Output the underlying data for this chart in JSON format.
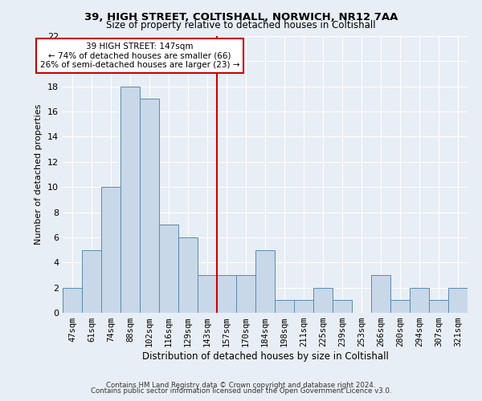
{
  "title1": "39, HIGH STREET, COLTISHALL, NORWICH, NR12 7AA",
  "title2": "Size of property relative to detached houses in Coltishall",
  "xlabel": "Distribution of detached houses by size in Coltishall",
  "ylabel": "Number of detached properties",
  "categories": [
    "47sqm",
    "61sqm",
    "74sqm",
    "88sqm",
    "102sqm",
    "116sqm",
    "129sqm",
    "143sqm",
    "157sqm",
    "170sqm",
    "184sqm",
    "198sqm",
    "211sqm",
    "225sqm",
    "239sqm",
    "253sqm",
    "266sqm",
    "280sqm",
    "294sqm",
    "307sqm",
    "321sqm"
  ],
  "values": [
    2,
    5,
    10,
    18,
    17,
    7,
    6,
    3,
    3,
    3,
    5,
    1,
    1,
    2,
    1,
    0,
    3,
    1,
    2,
    1,
    2
  ],
  "bar_color": "#c8d8e8",
  "bar_edge_color": "#5a8ab0",
  "ylim": [
    0,
    22
  ],
  "yticks": [
    0,
    2,
    4,
    6,
    8,
    10,
    12,
    14,
    16,
    18,
    20,
    22
  ],
  "vline_x_index": 7.5,
  "vline_color": "#cc0000",
  "annotation_box_text": "39 HIGH STREET: 147sqm\n← 74% of detached houses are smaller (66)\n26% of semi-detached houses are larger (23) →",
  "footer_line1": "Contains HM Land Registry data © Crown copyright and database right 2024.",
  "footer_line2": "Contains public sector information licensed under the Open Government Licence v3.0.",
  "bg_color": "#e8eef5",
  "plot_bg_color": "#e8eef5"
}
